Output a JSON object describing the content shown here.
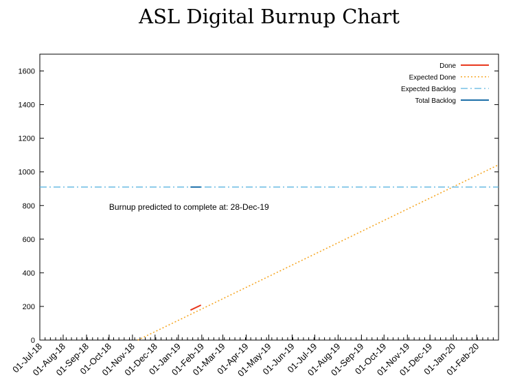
{
  "chart_data": {
    "type": "line",
    "title": "ASL Digital Burnup Chart",
    "xlabel": "",
    "ylabel": "",
    "x_range": [
      "2018-07-01",
      "2020-03-01"
    ],
    "ylim": [
      0,
      1700
    ],
    "y_ticks": [
      0,
      200,
      400,
      600,
      800,
      1000,
      1200,
      1400,
      1600
    ],
    "x_tick_dates": [
      "2018-07-01",
      "2018-08-01",
      "2018-09-01",
      "2018-10-01",
      "2018-11-01",
      "2018-12-01",
      "2019-01-01",
      "2019-02-01",
      "2019-03-01",
      "2019-04-01",
      "2019-05-01",
      "2019-06-01",
      "2019-07-01",
      "2019-08-01",
      "2019-09-01",
      "2019-10-01",
      "2019-11-01",
      "2019-12-01",
      "2020-01-01",
      "2020-02-01"
    ],
    "x_tick_labels": [
      "01-Jul-18",
      "01-Aug-18",
      "01-Sep-18",
      "01-Oct-18",
      "01-Nov-18",
      "01-Dec-18",
      "01-Jan-19",
      "01-Feb-19",
      "01-Mar-19",
      "01-Apr-19",
      "01-May-19",
      "01-Jun-19",
      "01-Jul-19",
      "01-Aug-19",
      "01-Sep-19",
      "01-Oct-19",
      "01-Nov-19",
      "01-Dec-19",
      "01-Jan-20",
      "01-Feb-20"
    ],
    "grid": false,
    "legend_position": "top-right",
    "series": [
      {
        "name": "Done",
        "color": "#e8361c",
        "style": "solid",
        "points": [
          {
            "x": "2019-01-17",
            "y": 178
          },
          {
            "x": "2019-01-31",
            "y": 208
          }
        ]
      },
      {
        "name": "Expected Done",
        "color": "#f5a623",
        "style": "dotted",
        "points": [
          {
            "x": "2018-11-08",
            "y": 0
          },
          {
            "x": "2020-03-01",
            "y": 1042
          }
        ]
      },
      {
        "name": "Expected Backlog",
        "color": "#5bb4e0",
        "style": "dashdot",
        "points": [
          {
            "x": "2018-07-01",
            "y": 910
          },
          {
            "x": "2020-03-01",
            "y": 910
          }
        ]
      },
      {
        "name": "Total Backlog",
        "color": "#1a6ea8",
        "style": "solid",
        "points": [
          {
            "x": "2019-01-17",
            "y": 910
          },
          {
            "x": "2019-01-31",
            "y": 910
          }
        ]
      }
    ],
    "annotations": [
      {
        "text": "Burnup predicted to complete at: 28-Dec-19",
        "x": "2018-10-01",
        "y": 790
      }
    ]
  }
}
